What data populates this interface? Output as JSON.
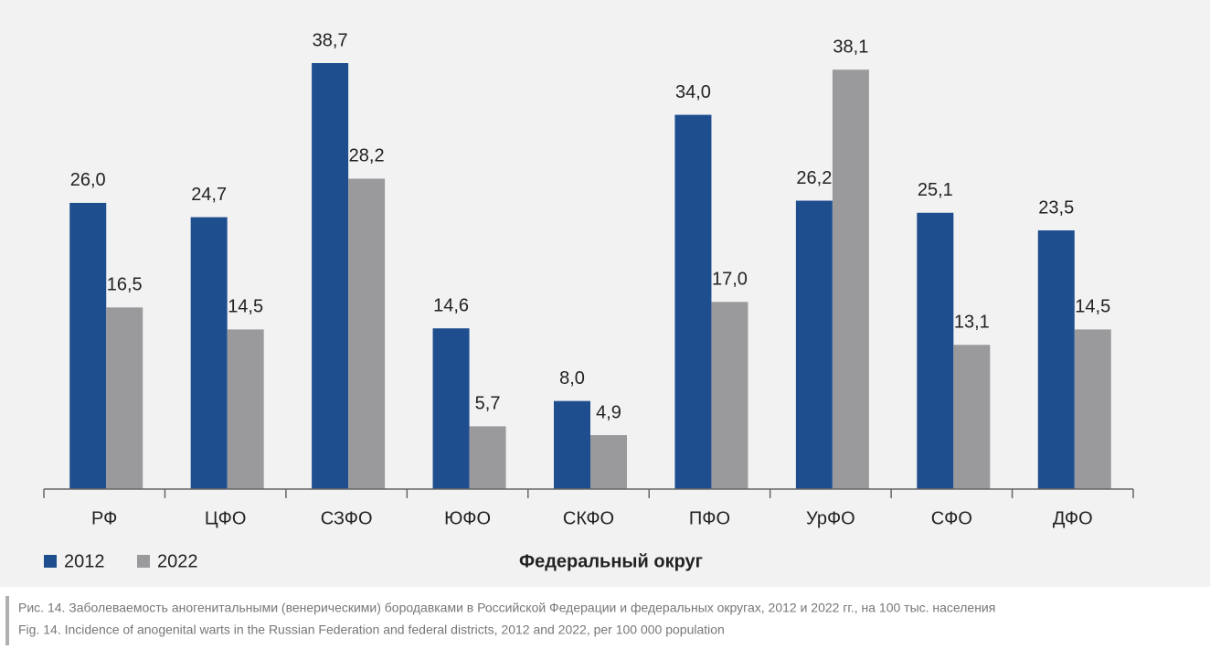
{
  "chart_data": {
    "type": "bar",
    "categories": [
      "РФ",
      "ЦФО",
      "СЗФО",
      "ЮФО",
      "СКФО",
      "ПФО",
      "УрФО",
      "СФО",
      "ДФО"
    ],
    "series": [
      {
        "name": "2012",
        "color": "#1f4e8f",
        "values": [
          26.0,
          24.7,
          38.7,
          14.6,
          8.0,
          34.0,
          26.2,
          25.1,
          23.5
        ],
        "value_labels": [
          "26,0",
          "24,7",
          "38,7",
          "14,6",
          "8,0",
          "34,0",
          "26,2",
          "25,1",
          "23,5"
        ]
      },
      {
        "name": "2022",
        "color": "#9a9a9c",
        "values": [
          16.5,
          14.5,
          28.2,
          5.7,
          4.9,
          17.0,
          38.1,
          13.1,
          14.5
        ],
        "value_labels": [
          "16,5",
          "14,5",
          "28,2",
          "5,7",
          "4,9",
          "17,0",
          "38,1",
          "13,1",
          "14,5"
        ]
      }
    ],
    "x_label": "Федеральный округ",
    "legend": "bottom-left",
    "caption": [
      "Рис. 14. Заболеваемость аногенитальными (венерическими) бородавками в Российской Федерации и федеральных округах, 2012 и 2022 гг., на 100 тыс. населения",
      "Fig. 14. Incidence of anogenital warts in the Russian Federation and federal districts, 2012 and 2022, per 100 000 population"
    ]
  }
}
